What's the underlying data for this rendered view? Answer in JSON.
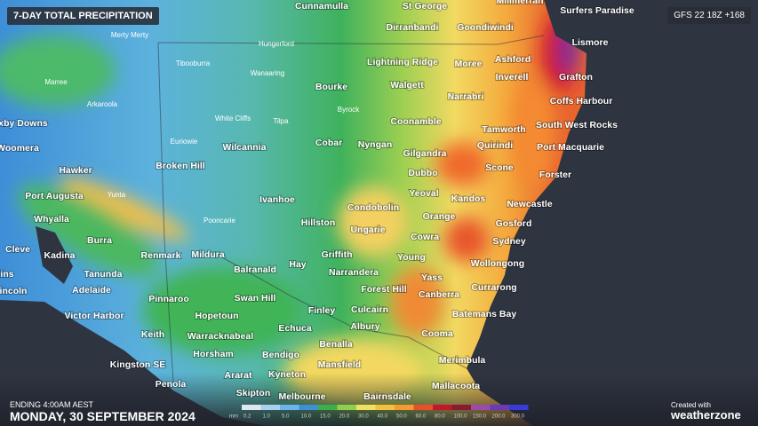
{
  "header": {
    "title": "7-DAY TOTAL PRECIPITATION",
    "model_run": "GFS 22 18Z +168"
  },
  "footer": {
    "ending": "ENDING 4:00AM AEST",
    "date": "MONDAY, 30 SEPTEMBER 2024"
  },
  "credit": {
    "created_with": "Created with",
    "brand": "weatherzone"
  },
  "legend": {
    "unit": "mm",
    "labels": [
      "0.2",
      "1.0",
      "5.0",
      "10.0",
      "15.0",
      "20.0",
      "30.0",
      "40.0",
      "50.0",
      "60.0",
      "80.0",
      "100.0",
      "150.0",
      "200.0",
      "300.0"
    ]
  },
  "places": [
    "Cunnamulla",
    "St George",
    "Millmerran",
    "Surfers Paradise",
    "Dirranbandi",
    "Goondiwindi",
    "Lismore",
    "Lightning Ridge",
    "Moree",
    "Ashford",
    "Inverell",
    "Grafton",
    "Bourke",
    "Walgett",
    "Narrabri",
    "Coffs Harbour",
    "xby Downs",
    "Coonamble",
    "Tamworth",
    "South West Rocks",
    "Cobar",
    "Nyngan",
    "Quirindi",
    "Port Macquarie",
    "Woomera",
    "Wilcannia",
    "Gilgandra",
    "Broken Hill",
    "Hawker",
    "Scone",
    "Dubbo",
    "Forster",
    "Port Augusta",
    "Ivanhoe",
    "Yeoval",
    "Kandos",
    "Newcastle",
    "Condobolin",
    "Whyalla",
    "Orange",
    "Hillston",
    "Gosford",
    "Ungarie",
    "Burra",
    "Cowra",
    "Sydney",
    "Cleve",
    "Kadina",
    "Renmark",
    "Mildura",
    "Griffith",
    "Young",
    "Balranald",
    "Hay",
    "Wollongong",
    "Tanunda",
    "Narrandera",
    "ins",
    "incoln",
    "Adelaide",
    "Yass",
    "Forest Hill",
    "Canberra",
    "Currarong",
    "Swan Hill",
    "Pinnaroo",
    "Finley",
    "Culcairn",
    "Batemans Bay",
    "Victor Harbor",
    "Hopetoun",
    "Echuca",
    "Albury",
    "Keith",
    "Warracknabeal",
    "Benalla",
    "Cooma",
    "Horsham",
    "Bendigo",
    "Merimbula",
    "Mansfield",
    "Kingston SE",
    "Kyneton",
    "Ararat",
    "Penola",
    "Mallacoota",
    "Skipton",
    "Melbourne",
    "Bairnsdale"
  ],
  "small_places": [
    "Merty Merty",
    "Hungerford",
    "Tibooburra",
    "Wanaaring",
    "Marree",
    "Arkaroola",
    "Byrock",
    "White Cliffs",
    "Tilpa",
    "Euriowie",
    "Yunta",
    "Pooncarie"
  ]
}
